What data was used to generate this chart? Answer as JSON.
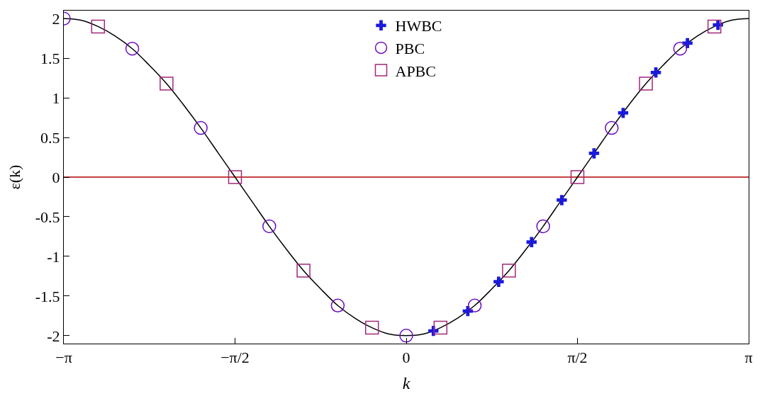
{
  "chart_data": {
    "type": "scatter",
    "xlabel": "k",
    "ylabel": "ε(k)",
    "xlim": [
      -3.1416,
      3.1416
    ],
    "ylim": [
      -2.1,
      2.1
    ],
    "xticks": [
      {
        "value": -3.1416,
        "label": "−π"
      },
      {
        "value": -1.5708,
        "label": "−π/2"
      },
      0,
      {
        "value": 1.5708,
        "label": "π/2"
      },
      {
        "value": 3.1416,
        "label": "π"
      }
    ],
    "yticks": [
      {
        "value": -2,
        "label": "-2"
      },
      {
        "value": -1.5,
        "label": "-1.5"
      },
      {
        "value": -1,
        "label": "-1"
      },
      {
        "value": -0.5,
        "label": "-0.5"
      },
      0,
      0.5,
      1,
      1.5,
      2
    ],
    "grid": false,
    "legend": "top",
    "ref_lines": [
      {
        "axis": "y",
        "value": 0,
        "color": "#b00000",
        "line_style": "solid"
      }
    ],
    "series": [
      {
        "type": "line",
        "color": "#000000",
        "marker": "none",
        "x": [
          -3.1416,
          -2.9845,
          -2.8274,
          -2.6704,
          -2.5133,
          -2.3562,
          -2.1991,
          -2.042,
          -1.885,
          -1.7279,
          -1.5708,
          -1.4137,
          -1.2566,
          -1.0996,
          -0.9425,
          -0.7854,
          -0.6283,
          -0.4712,
          -0.3142,
          -0.1571,
          0,
          0.1571,
          0.3142,
          0.4712,
          0.6283,
          0.7854,
          0.9425,
          1.0996,
          1.2566,
          1.4137,
          1.5708,
          1.7279,
          1.885,
          2.042,
          2.1991,
          2.3562,
          2.5133,
          2.6704,
          2.8274,
          2.9845,
          3.1416
        ],
        "values": [
          2,
          1.98,
          1.9,
          1.78,
          1.62,
          1.41,
          1.18,
          0.91,
          0.62,
          0.31,
          0,
          -0.31,
          -0.62,
          -0.91,
          -1.18,
          -1.41,
          -1.62,
          -1.78,
          -1.9,
          -1.98,
          -2,
          -1.98,
          -1.9,
          -1.78,
          -1.62,
          -1.41,
          -1.18,
          -0.91,
          -0.62,
          -0.31,
          0,
          0.31,
          0.62,
          0.91,
          1.18,
          1.41,
          1.62,
          1.78,
          1.9,
          1.98,
          2
        ]
      },
      {
        "name": "HWBC",
        "color": "#1a1adc",
        "marker": "cross",
        "x": [
          0.249,
          0.565,
          0.848,
          1.15,
          1.427,
          1.723,
          1.99,
          2.29,
          2.58,
          2.86
        ],
        "values": [
          -1.94,
          -1.69,
          -1.32,
          -0.82,
          -0.29,
          0.3,
          0.81,
          1.32,
          1.69,
          1.92
        ]
      },
      {
        "name": "PBC",
        "color": "#6a0dc0",
        "marker": "circle",
        "x": [
          -3.1416,
          -2.5133,
          -1.885,
          -1.2566,
          -0.6283,
          0,
          0.6283,
          1.2566,
          1.885,
          2.5133
        ],
        "values": [
          2,
          1.62,
          0.62,
          -0.62,
          -1.62,
          -2,
          -1.62,
          -0.62,
          0.62,
          1.62
        ]
      },
      {
        "name": "APBC",
        "color": "#a0287a",
        "marker": "square",
        "x": [
          -2.8274,
          -2.1991,
          -1.5708,
          -0.9425,
          -0.3142,
          0.3142,
          0.9425,
          1.5708,
          2.1991,
          2.8274
        ],
        "values": [
          1.9,
          1.18,
          0,
          -1.18,
          -1.9,
          -1.9,
          -1.18,
          0,
          1.18,
          1.9
        ]
      }
    ]
  }
}
